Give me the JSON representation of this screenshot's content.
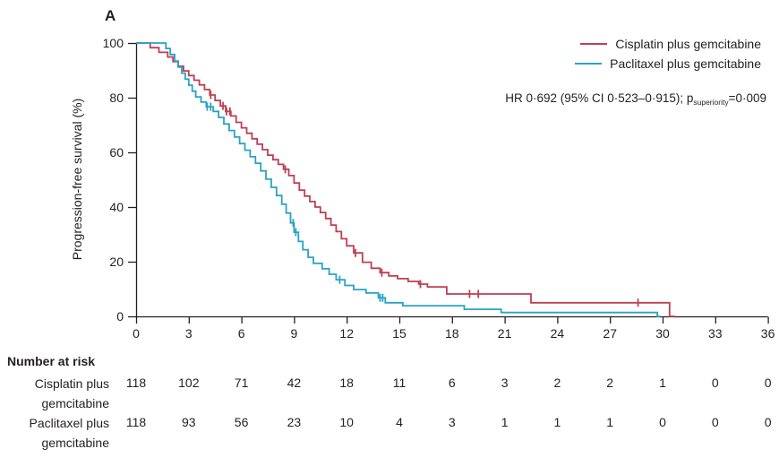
{
  "panel_label": "A",
  "colors": {
    "axis": "#231f20",
    "text": "#231f20"
  },
  "chart_data": {
    "type": "line",
    "subtype": "kaplan-meier-step",
    "title": "A",
    "xlabel": "",
    "ylabel": "Progression-free survival (%)",
    "xlim": [
      0,
      36
    ],
    "ylim": [
      0,
      100
    ],
    "grid": "off",
    "legend_position": "top-right",
    "x_ticks": [
      0,
      3,
      6,
      9,
      12,
      15,
      18,
      21,
      24,
      27,
      30,
      33,
      36
    ],
    "y_ticks": [
      0,
      20,
      40,
      60,
      80,
      100
    ],
    "annotation": {
      "prefix": "HR 0·692 (95% CI 0·523–0·915); p",
      "subscript": "superiority",
      "suffix": "=0·009"
    },
    "series": [
      {
        "name": "Cisplatin plus gemcitabine",
        "color": "#be3f52",
        "steps": [
          [
            0.8,
            98.3
          ],
          [
            1.3,
            96.6
          ],
          [
            1.8,
            94.9
          ],
          [
            2.1,
            93.2
          ],
          [
            2.4,
            91.5
          ],
          [
            2.7,
            89.8
          ],
          [
            3.0,
            88.1
          ],
          [
            3.3,
            86.4
          ],
          [
            3.6,
            84.7
          ],
          [
            3.9,
            83.0
          ],
          [
            4.2,
            81.0
          ],
          [
            4.5,
            79.0
          ],
          [
            4.8,
            77.0
          ],
          [
            5.1,
            75.0
          ],
          [
            5.4,
            73.3
          ],
          [
            5.7,
            71.0
          ],
          [
            6.0,
            69.0
          ],
          [
            6.3,
            67.0
          ],
          [
            6.6,
            65.0
          ],
          [
            6.9,
            63.0
          ],
          [
            7.2,
            61.0
          ],
          [
            7.5,
            59.0
          ],
          [
            7.8,
            57.3
          ],
          [
            8.1,
            55.6
          ],
          [
            8.4,
            53.8
          ],
          [
            8.7,
            51.5
          ],
          [
            9.0,
            48.8
          ],
          [
            9.3,
            46.2
          ],
          [
            9.6,
            44.0
          ],
          [
            9.9,
            42.0
          ],
          [
            10.2,
            40.0
          ],
          [
            10.5,
            38.0
          ],
          [
            10.8,
            35.8
          ],
          [
            11.1,
            33.4
          ],
          [
            11.4,
            31.0
          ],
          [
            11.7,
            28.4
          ],
          [
            12.0,
            25.8
          ],
          [
            12.4,
            23.2
          ],
          [
            12.9,
            19.8
          ],
          [
            13.4,
            17.6
          ],
          [
            13.9,
            16.0
          ],
          [
            14.4,
            14.8
          ],
          [
            14.9,
            13.8
          ],
          [
            15.5,
            12.8
          ],
          [
            16.1,
            11.8
          ],
          [
            16.6,
            10.8
          ],
          [
            17.7,
            8.2
          ],
          [
            22.5,
            5.0
          ],
          [
            30.4,
            0
          ]
        ],
        "end_month": 30.7,
        "censor_months": [
          4.25,
          4.95,
          5.15,
          5.35,
          8.5,
          12.5,
          14.0,
          16.2,
          19.0,
          19.5,
          28.6
        ]
      },
      {
        "name": "Paclitaxel plus gemcitabine",
        "color": "#2aa3c4",
        "steps": [
          [
            1.7,
            98.0
          ],
          [
            1.95,
            95.8
          ],
          [
            2.2,
            93.4
          ],
          [
            2.4,
            91.2
          ],
          [
            2.6,
            89.0
          ],
          [
            2.8,
            86.8
          ],
          [
            3.0,
            84.6
          ],
          [
            3.2,
            82.4
          ],
          [
            3.4,
            80.3
          ],
          [
            3.7,
            78.4
          ],
          [
            4.0,
            76.7
          ],
          [
            4.4,
            75.0
          ],
          [
            4.7,
            72.8
          ],
          [
            5.0,
            70.4
          ],
          [
            5.3,
            68.0
          ],
          [
            5.6,
            65.6
          ],
          [
            5.9,
            63.2
          ],
          [
            6.2,
            60.8
          ],
          [
            6.5,
            58.4
          ],
          [
            6.8,
            56.0
          ],
          [
            7.1,
            53.2
          ],
          [
            7.4,
            50.2
          ],
          [
            7.7,
            47.2
          ],
          [
            8.0,
            44.2
          ],
          [
            8.3,
            41.0
          ],
          [
            8.55,
            37.8
          ],
          [
            8.8,
            34.2
          ],
          [
            9.0,
            30.8
          ],
          [
            9.25,
            27.4
          ],
          [
            9.5,
            24.4
          ],
          [
            9.8,
            21.6
          ],
          [
            10.1,
            19.4
          ],
          [
            10.6,
            17.4
          ],
          [
            11.0,
            15.4
          ],
          [
            11.4,
            13.4
          ],
          [
            11.9,
            11.3
          ],
          [
            12.4,
            9.8
          ],
          [
            13.1,
            8.6
          ],
          [
            13.8,
            6.8
          ],
          [
            14.2,
            5.0
          ],
          [
            15.2,
            3.9
          ],
          [
            18.7,
            2.6
          ],
          [
            20.8,
            1.4
          ],
          [
            29.7,
            0
          ]
        ],
        "end_month": 29.85,
        "censor_months": [
          4.05,
          4.25,
          8.95,
          9.1,
          11.6,
          13.9,
          14.05
        ]
      }
    ],
    "number_at_risk": {
      "header": "Number at risk",
      "time_points": [
        0,
        3,
        6,
        9,
        12,
        15,
        18,
        21,
        24,
        27,
        30,
        33,
        36
      ],
      "rows": [
        {
          "label_lines": [
            "Cisplatin plus",
            "gemcitabine"
          ],
          "values": [
            118,
            102,
            71,
            42,
            18,
            11,
            6,
            3,
            2,
            2,
            1,
            0,
            0
          ]
        },
        {
          "label_lines": [
            "Paclitaxel plus",
            "gemcitabine"
          ],
          "values": [
            118,
            93,
            56,
            23,
            10,
            4,
            3,
            1,
            1,
            1,
            0,
            0,
            0
          ]
        }
      ]
    }
  }
}
